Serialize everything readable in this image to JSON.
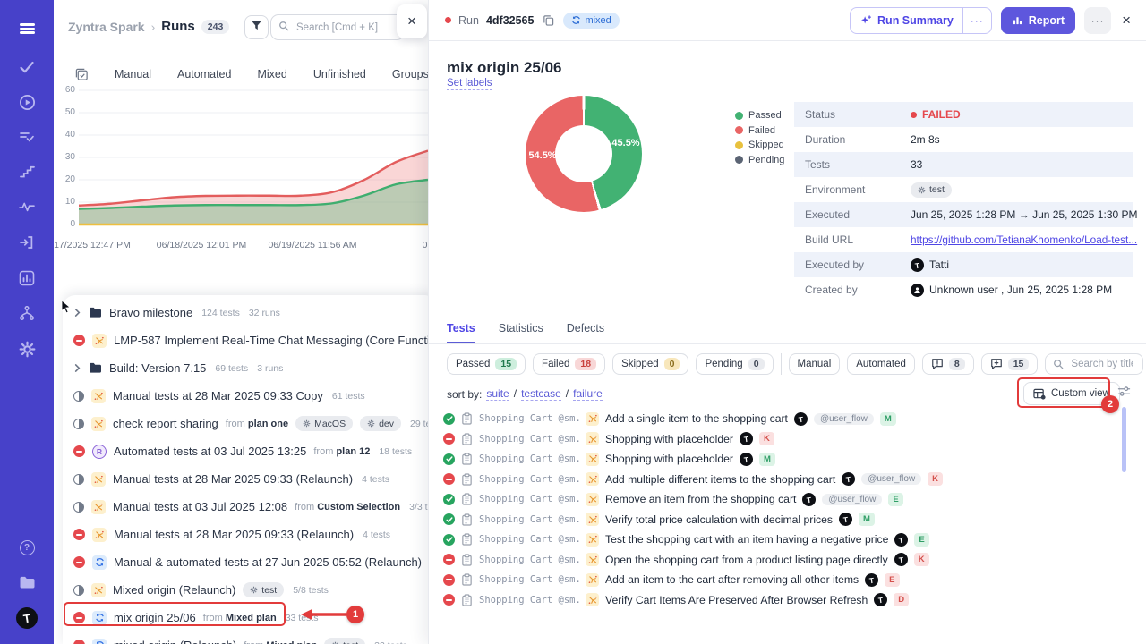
{
  "app": {
    "sidebar_icons": [
      "menu",
      "check",
      "play-circle",
      "list-check",
      "steps",
      "activity",
      "sign-in",
      "bar-chart",
      "branch",
      "gear",
      "help",
      "folder",
      "avatar-t"
    ]
  },
  "left_panel": {
    "breadcrumb": {
      "project": "Zyntra Spark",
      "separator": "›",
      "section": "Runs",
      "count": "243"
    },
    "search": {
      "placeholder": "Search [Cmd + K]"
    },
    "close_label": "×",
    "tabs": [
      {
        "label": "Manual"
      },
      {
        "label": "Automated"
      },
      {
        "label": "Mixed"
      },
      {
        "label": "Unfinished"
      },
      {
        "label": "Groups"
      }
    ],
    "env_tag": "tes",
    "from_label": "from",
    "runs": [
      {
        "kind": "folder",
        "title": "Bravo milestone",
        "meta": [
          "124 tests",
          "32 runs"
        ],
        "cursor": true
      },
      {
        "kind": "run",
        "status": "failed",
        "rtype": "manual",
        "title": "LMP-587 Implement Real-Time Chat Messaging (Core Functionality)",
        "meta": []
      },
      {
        "kind": "folder",
        "title": "Build: Version 7.15",
        "meta": [
          "69 tests",
          "3 runs"
        ]
      },
      {
        "kind": "run",
        "status": "progress",
        "rtype": "manual",
        "title": "Manual tests at 28 Mar 2025 09:33 Copy",
        "meta": [
          "61 tests"
        ]
      },
      {
        "kind": "run",
        "status": "progress",
        "rtype": "manual",
        "title": "check report sharing",
        "from": "plan one",
        "envs": [
          "MacOS",
          "dev"
        ],
        "meta": [
          "29 tests"
        ]
      },
      {
        "kind": "run",
        "status": "failed",
        "rtype": "automated",
        "title": "Automated tests at 03 Jul 2025 13:25",
        "from": "plan 12",
        "meta": [
          "18 tests"
        ]
      },
      {
        "kind": "run",
        "status": "progress",
        "rtype": "manual",
        "title": "Manual tests at 28 Mar 2025 09:33 (Relaunch)",
        "meta": [
          "4 tests"
        ]
      },
      {
        "kind": "run",
        "status": "progress",
        "rtype": "manual",
        "title": "Manual tests at 03 Jul 2025 12:08",
        "from": "Custom Selection",
        "meta": [
          "3/3 tests"
        ]
      },
      {
        "kind": "run",
        "status": "failed",
        "rtype": "manual",
        "title": "Manual tests at 28 Mar 2025 09:33 (Relaunch)",
        "meta": [
          "4 tests"
        ]
      },
      {
        "kind": "run",
        "status": "failed",
        "rtype": "mixed",
        "title": "Manual & automated tests at 27 Jun 2025 05:52 (Relaunch)",
        "envs": [
          "tes"
        ],
        "meta": []
      },
      {
        "kind": "run",
        "status": "progress",
        "rtype": "manual",
        "title": "Mixed origin (Relaunch)",
        "envs": [
          "test"
        ],
        "meta": [
          "5/8 tests"
        ]
      },
      {
        "kind": "run",
        "status": "failed",
        "rtype": "mixed",
        "title": "mix origin 25/06",
        "from": "Mixed plan",
        "meta": [
          "33 tests"
        ],
        "highlight": true
      },
      {
        "kind": "run",
        "status": "failed",
        "rtype": "mixed",
        "title": "mixed origin (Relaunch)",
        "from": "Mixed plan",
        "envs": [
          "test"
        ],
        "meta": [
          "33 tests"
        ]
      }
    ]
  },
  "chart_data": [
    {
      "type": "area",
      "title": "Runs trend",
      "x_ticks": [
        "17/2025 12:47 PM",
        "06/18/2025 12:01 PM",
        "06/19/2025 11:56 AM",
        "06/23/202"
      ],
      "y_ticks": [
        60,
        50,
        40,
        30,
        20,
        10,
        0
      ],
      "ylim": [
        0,
        60
      ],
      "grid": true,
      "legend_position": "none",
      "series": [
        {
          "name": "failed",
          "color": "#e35d5d",
          "fill": "rgba(236,106,106,0.28)",
          "values": [
            8.5,
            9.3,
            10.8,
            12.2,
            12.8,
            12.9,
            12.9,
            12.9,
            14.5,
            20,
            28,
            33
          ]
        },
        {
          "name": "passed",
          "color": "#3fae6f",
          "fill": "rgba(112,190,140,0.45)",
          "values": [
            7,
            7.4,
            8,
            8.5,
            8.7,
            8.7,
            8.7,
            8.7,
            9.5,
            13,
            18,
            20
          ]
        },
        {
          "name": "skipped",
          "color": "#eebf3f",
          "fill": "none",
          "values": [
            0,
            0,
            0,
            0,
            0,
            0,
            0,
            0,
            0,
            0,
            0,
            0
          ]
        }
      ]
    },
    {
      "type": "pie",
      "labels": [
        "Passed",
        "Failed",
        "Skipped",
        "Pending"
      ],
      "values": [
        45.5,
        54.5,
        0,
        0
      ],
      "colors": [
        "#42b273",
        "#e96565",
        "#e8c13e",
        "#5b6474"
      ],
      "labels_shown": [
        "45.5%",
        "54.5%"
      ]
    }
  ],
  "run_detail": {
    "header": {
      "run_label": "Run",
      "run_id": "4df32565",
      "type_chip": "mixed",
      "run_summary_btn": "Run Summary",
      "more": "···",
      "report_btn": "Report",
      "close": "×"
    },
    "title": "mix origin 25/06",
    "set_labels": "Set labels",
    "info": [
      {
        "label": "Status",
        "kind": "status",
        "value": "FAILED"
      },
      {
        "label": "Duration",
        "kind": "text",
        "value": "2m 8s"
      },
      {
        "label": "Tests",
        "kind": "text",
        "value": "33"
      },
      {
        "label": "Environment",
        "kind": "env",
        "value": "test"
      },
      {
        "label": "Executed",
        "kind": "text",
        "value": "Jun 25, 2025 1:28 PM → Jun 25, 2025 1:30 PM"
      },
      {
        "label": "Build URL",
        "kind": "link",
        "value": "https://github.com/TetianaKhomenko/Load-test..."
      },
      {
        "label": "Executed by",
        "kind": "avatar",
        "value": "Tatti"
      },
      {
        "label": "Created by",
        "kind": "user",
        "value": "Unknown user , Jun 25, 2025 1:28 PM"
      }
    ],
    "tabs": [
      {
        "label": "Tests",
        "active": true
      },
      {
        "label": "Statistics"
      },
      {
        "label": "Defects"
      }
    ],
    "filter_chips": [
      {
        "label": "Passed",
        "count": "15",
        "color": "green"
      },
      {
        "label": "Failed",
        "count": "18",
        "color": "red"
      },
      {
        "label": "Skipped",
        "count": "0",
        "color": "yellow"
      },
      {
        "label": "Pending",
        "count": "0",
        "color": "gray"
      }
    ],
    "type_filters": [
      "Manual",
      "Automated"
    ],
    "comment_filters": [
      {
        "icon": "comment-alert-icon",
        "count": "8"
      },
      {
        "icon": "comment-add-icon",
        "count": "15"
      }
    ],
    "search_placeholder": "Search by title/mes",
    "sort": {
      "label": "sort by:",
      "links": [
        "suite",
        "testcase",
        "failure"
      ],
      "sep": "/"
    },
    "custom_view": "Custom view",
    "tests": [
      {
        "status": "passed",
        "suite": "Shopping Cart @sm...",
        "title": "Add a single item to the shopping cart",
        "tag": "@user_flow",
        "badge": "M"
      },
      {
        "status": "failed",
        "suite": "Shopping Cart @sm...",
        "title": "Shopping with placeholder",
        "badge": "K"
      },
      {
        "status": "passed",
        "suite": "Shopping Cart @sm...",
        "title": "Shopping with placeholder",
        "badge": "M"
      },
      {
        "status": "failed",
        "suite": "Shopping Cart @sm...",
        "title": "Add multiple different items to the shopping cart",
        "tag": "@user_flow",
        "badge": "K"
      },
      {
        "status": "passed",
        "suite": "Shopping Cart @sm...",
        "title": "Remove an item from the shopping cart",
        "tag": "@user_flow",
        "badge": "E"
      },
      {
        "status": "passed",
        "suite": "Shopping Cart @sm...",
        "title": "Verify total price calculation with decimal prices",
        "badge": "M"
      },
      {
        "status": "passed",
        "suite": "Shopping Cart @sm...",
        "title": "Test the shopping cart with an item having a negative price",
        "badge": "E"
      },
      {
        "status": "failed",
        "suite": "Shopping Cart @sm...",
        "title": "Open the shopping cart from a product listing page directly",
        "badge": "K"
      },
      {
        "status": "failed",
        "suite": "Shopping Cart @sm...",
        "title": "Add an item to the cart after removing all other items",
        "badge": "E"
      },
      {
        "status": "failed",
        "suite": "Shopping Cart @sm...",
        "title": "Verify Cart Items Are Preserved After Browser Refresh",
        "badge": "D"
      }
    ]
  },
  "annotations": {
    "step1": "1",
    "step2": "2"
  },
  "colors": {
    "accent": "#4f46e5",
    "failed": "#e5484d",
    "passed": "#27a45f",
    "annotation": "#e23b3b",
    "sidebar": "#4741c9"
  }
}
